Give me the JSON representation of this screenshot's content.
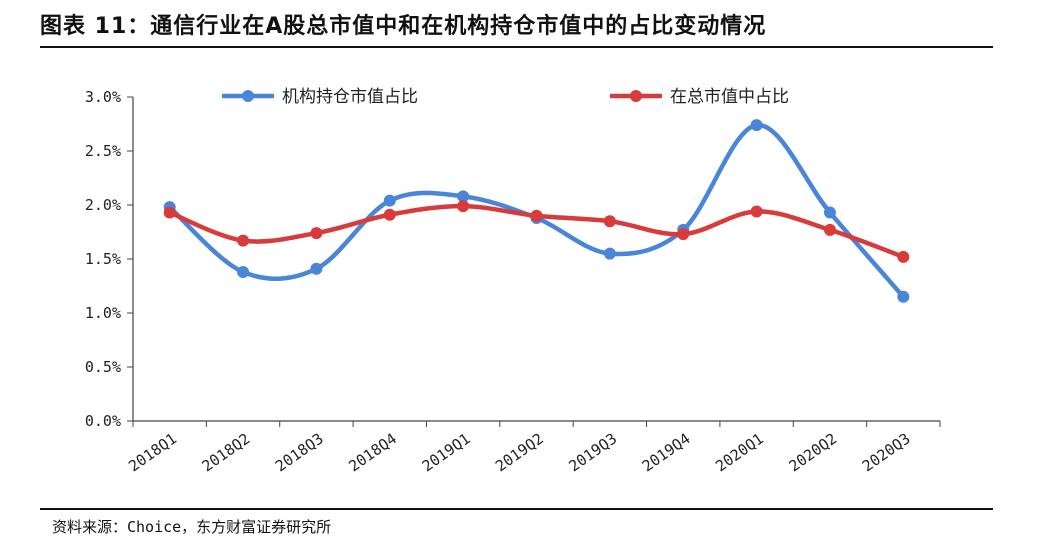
{
  "title": "图表 11：通信行业在A股总市值中和在机构持仓市值中的占比变动情况",
  "source": "资料来源：Choice，东方财富证券研究所",
  "chart_data": {
    "type": "line",
    "categories": [
      "2018Q1",
      "2018Q2",
      "2018Q3",
      "2018Q4",
      "2019Q1",
      "2019Q2",
      "2019Q3",
      "2019Q4",
      "2020Q1",
      "2020Q2",
      "2020Q3"
    ],
    "series": [
      {
        "name": "机构持仓市值占比",
        "color": "#4a86d8",
        "values": [
          1.98,
          1.38,
          1.41,
          2.04,
          2.08,
          1.88,
          1.55,
          1.77,
          2.74,
          1.93,
          1.15
        ]
      },
      {
        "name": "在总市值中占比",
        "color": "#d93a3a",
        "values": [
          1.93,
          1.67,
          1.74,
          1.91,
          1.99,
          1.9,
          1.85,
          1.73,
          1.94,
          1.77,
          1.52
        ]
      }
    ],
    "yticks": [
      "0.0%",
      "0.5%",
      "1.0%",
      "1.5%",
      "2.0%",
      "2.5%",
      "3.0%"
    ],
    "ylim": [
      0,
      3.0
    ],
    "legend_position": "top",
    "grid": false
  }
}
